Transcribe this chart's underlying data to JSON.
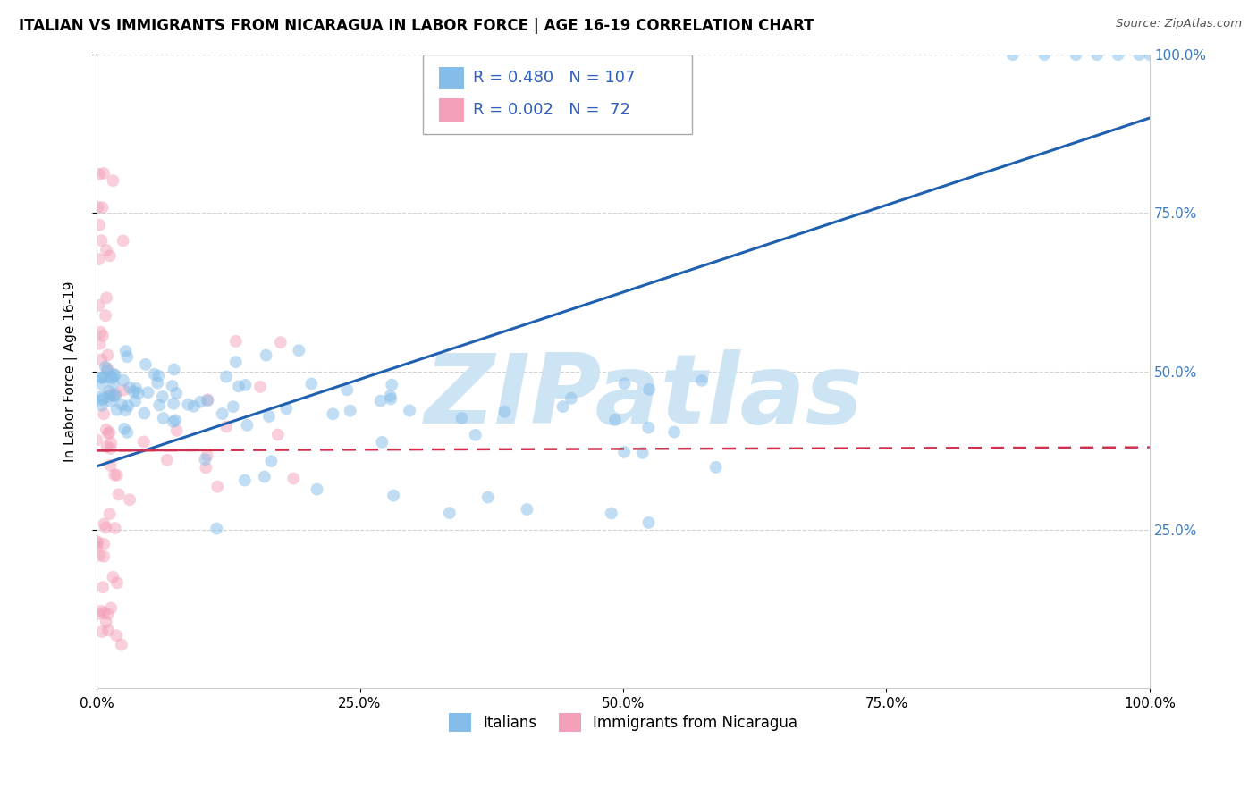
{
  "title": "ITALIAN VS IMMIGRANTS FROM NICARAGUA IN LABOR FORCE | AGE 16-19 CORRELATION CHART",
  "source": "Source: ZipAtlas.com",
  "ylabel": "In Labor Force | Age 16-19",
  "legend_labels": [
    "Italians",
    "Immigrants from Nicaragua"
  ],
  "r_italian": 0.48,
  "n_italian": 107,
  "r_nicaragua": 0.002,
  "n_nicaragua": 72,
  "italian_color": "#85bde8",
  "nicaragua_color": "#f4a0b8",
  "italian_line_color": "#2060b0",
  "nicaragua_line_color": "#d03050",
  "watermark_text": "ZIPatlas",
  "watermark_color": "#cde4f5",
  "background_color": "#ffffff",
  "grid_color": "#d0d0d0",
  "xlim": [
    0,
    1
  ],
  "ylim": [
    0,
    1
  ],
  "xtick_labels": [
    "0.0%",
    "25.0%",
    "50.0%",
    "75.0%",
    "100.0%"
  ],
  "xtick_values": [
    0,
    0.25,
    0.5,
    0.75,
    1.0
  ],
  "ytick_labels_right": [
    "100.0%",
    "75.0%",
    "50.0%",
    "25.0%"
  ],
  "ytick_values": [
    1.0,
    0.75,
    0.5,
    0.25
  ],
  "title_fontsize": 12,
  "axis_fontsize": 11,
  "tick_fontsize": 11,
  "marker_size": 100,
  "marker_alpha": 0.5,
  "ital_line_x0": 0.0,
  "ital_line_y0": 0.35,
  "ital_line_x1": 1.0,
  "ital_line_y1": 0.9,
  "nic_line_x0": 0.0,
  "nic_line_y0": 0.375,
  "nic_line_x1": 1.0,
  "nic_line_y1": 0.38
}
